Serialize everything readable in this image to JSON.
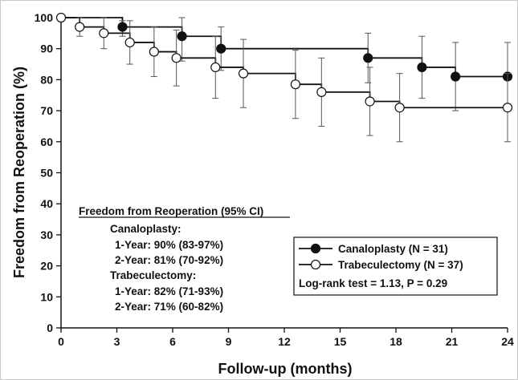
{
  "chart_data": {
    "type": "line",
    "subtype": "kaplan-meier step curve with 95% CI error bars",
    "xlabel": "Follow-up (months)",
    "ylabel": "Freedom from Reoperation (%)",
    "xlim": [
      0,
      24
    ],
    "ylim": [
      0,
      100
    ],
    "x_ticks": [
      0,
      3,
      6,
      9,
      12,
      15,
      18,
      21,
      24
    ],
    "y_ticks": [
      0,
      10,
      20,
      30,
      40,
      50,
      60,
      70,
      80,
      90,
      100
    ],
    "grid": false,
    "legend_position": "bottom-right",
    "series": [
      {
        "name": "Canaloplasty (N = 31)",
        "marker": "filled-circle",
        "color": "#111111",
        "steps": [
          [
            0,
            100
          ],
          [
            3.3,
            97
          ],
          [
            6.5,
            94
          ],
          [
            8.6,
            90
          ],
          [
            16.5,
            87
          ],
          [
            19.4,
            84
          ],
          [
            21.2,
            81
          ],
          [
            24,
            81
          ]
        ],
        "points": [
          {
            "x": 3.3,
            "y": 97,
            "lo": 94,
            "hi": 99
          },
          {
            "x": 6.5,
            "y": 94,
            "lo": 86,
            "hi": 100
          },
          {
            "x": 8.6,
            "y": 90,
            "lo": 83,
            "hi": 97
          },
          {
            "x": 16.5,
            "y": 87,
            "lo": 79,
            "hi": 95
          },
          {
            "x": 19.4,
            "y": 84,
            "lo": 74,
            "hi": 94
          },
          {
            "x": 21.2,
            "y": 81,
            "lo": 70,
            "hi": 92
          },
          {
            "x": 24,
            "y": 81,
            "lo": 70,
            "hi": 92
          }
        ]
      },
      {
        "name": "Trabeculectomy (N = 37)",
        "marker": "open-circle",
        "color": "#111111",
        "steps": [
          [
            0,
            100
          ],
          [
            1.0,
            97
          ],
          [
            2.3,
            95
          ],
          [
            3.7,
            92
          ],
          [
            5.0,
            89
          ],
          [
            6.2,
            87
          ],
          [
            8.3,
            84
          ],
          [
            9.8,
            82
          ],
          [
            12.6,
            78.5
          ],
          [
            14.0,
            76
          ],
          [
            16.6,
            73
          ],
          [
            18.2,
            71
          ],
          [
            24,
            71
          ]
        ],
        "points": [
          {
            "x": 0,
            "y": 100
          },
          {
            "x": 1.0,
            "y": 97,
            "lo": 94,
            "hi": 100
          },
          {
            "x": 2.3,
            "y": 95,
            "lo": 90,
            "hi": 100
          },
          {
            "x": 3.7,
            "y": 92,
            "lo": 85,
            "hi": 99
          },
          {
            "x": 5.0,
            "y": 89,
            "lo": 81,
            "hi": 97
          },
          {
            "x": 6.2,
            "y": 87,
            "lo": 78,
            "hi": 96
          },
          {
            "x": 8.3,
            "y": 84,
            "lo": 74,
            "hi": 94
          },
          {
            "x": 9.8,
            "y": 82,
            "lo": 71,
            "hi": 93
          },
          {
            "x": 12.6,
            "y": 78.5,
            "lo": 67.5,
            "hi": 89.5
          },
          {
            "x": 14.0,
            "y": 76,
            "lo": 65,
            "hi": 87
          },
          {
            "x": 16.6,
            "y": 73,
            "lo": 62,
            "hi": 84
          },
          {
            "x": 18.2,
            "y": 71,
            "lo": 60,
            "hi": 82
          },
          {
            "x": 24,
            "y": 71,
            "lo": 60,
            "hi": 82
          }
        ]
      }
    ],
    "annotation": {
      "title": "Freedom from Reoperation (95% CI)",
      "lines": [
        "Canaloplasty:",
        "1-Year: 90% (83-97%)",
        "2-Year: 81% (70-92%)",
        "Trabeculectomy:",
        "1-Year: 82% (71-93%)",
        "2-Year: 71% (60-82%)"
      ]
    },
    "legend": {
      "entries": [
        "Canaloplasty (N = 31)",
        "Trabeculectomy (N = 37)"
      ],
      "stat": "Log-rank test = 1.13, P = 0.29"
    }
  }
}
